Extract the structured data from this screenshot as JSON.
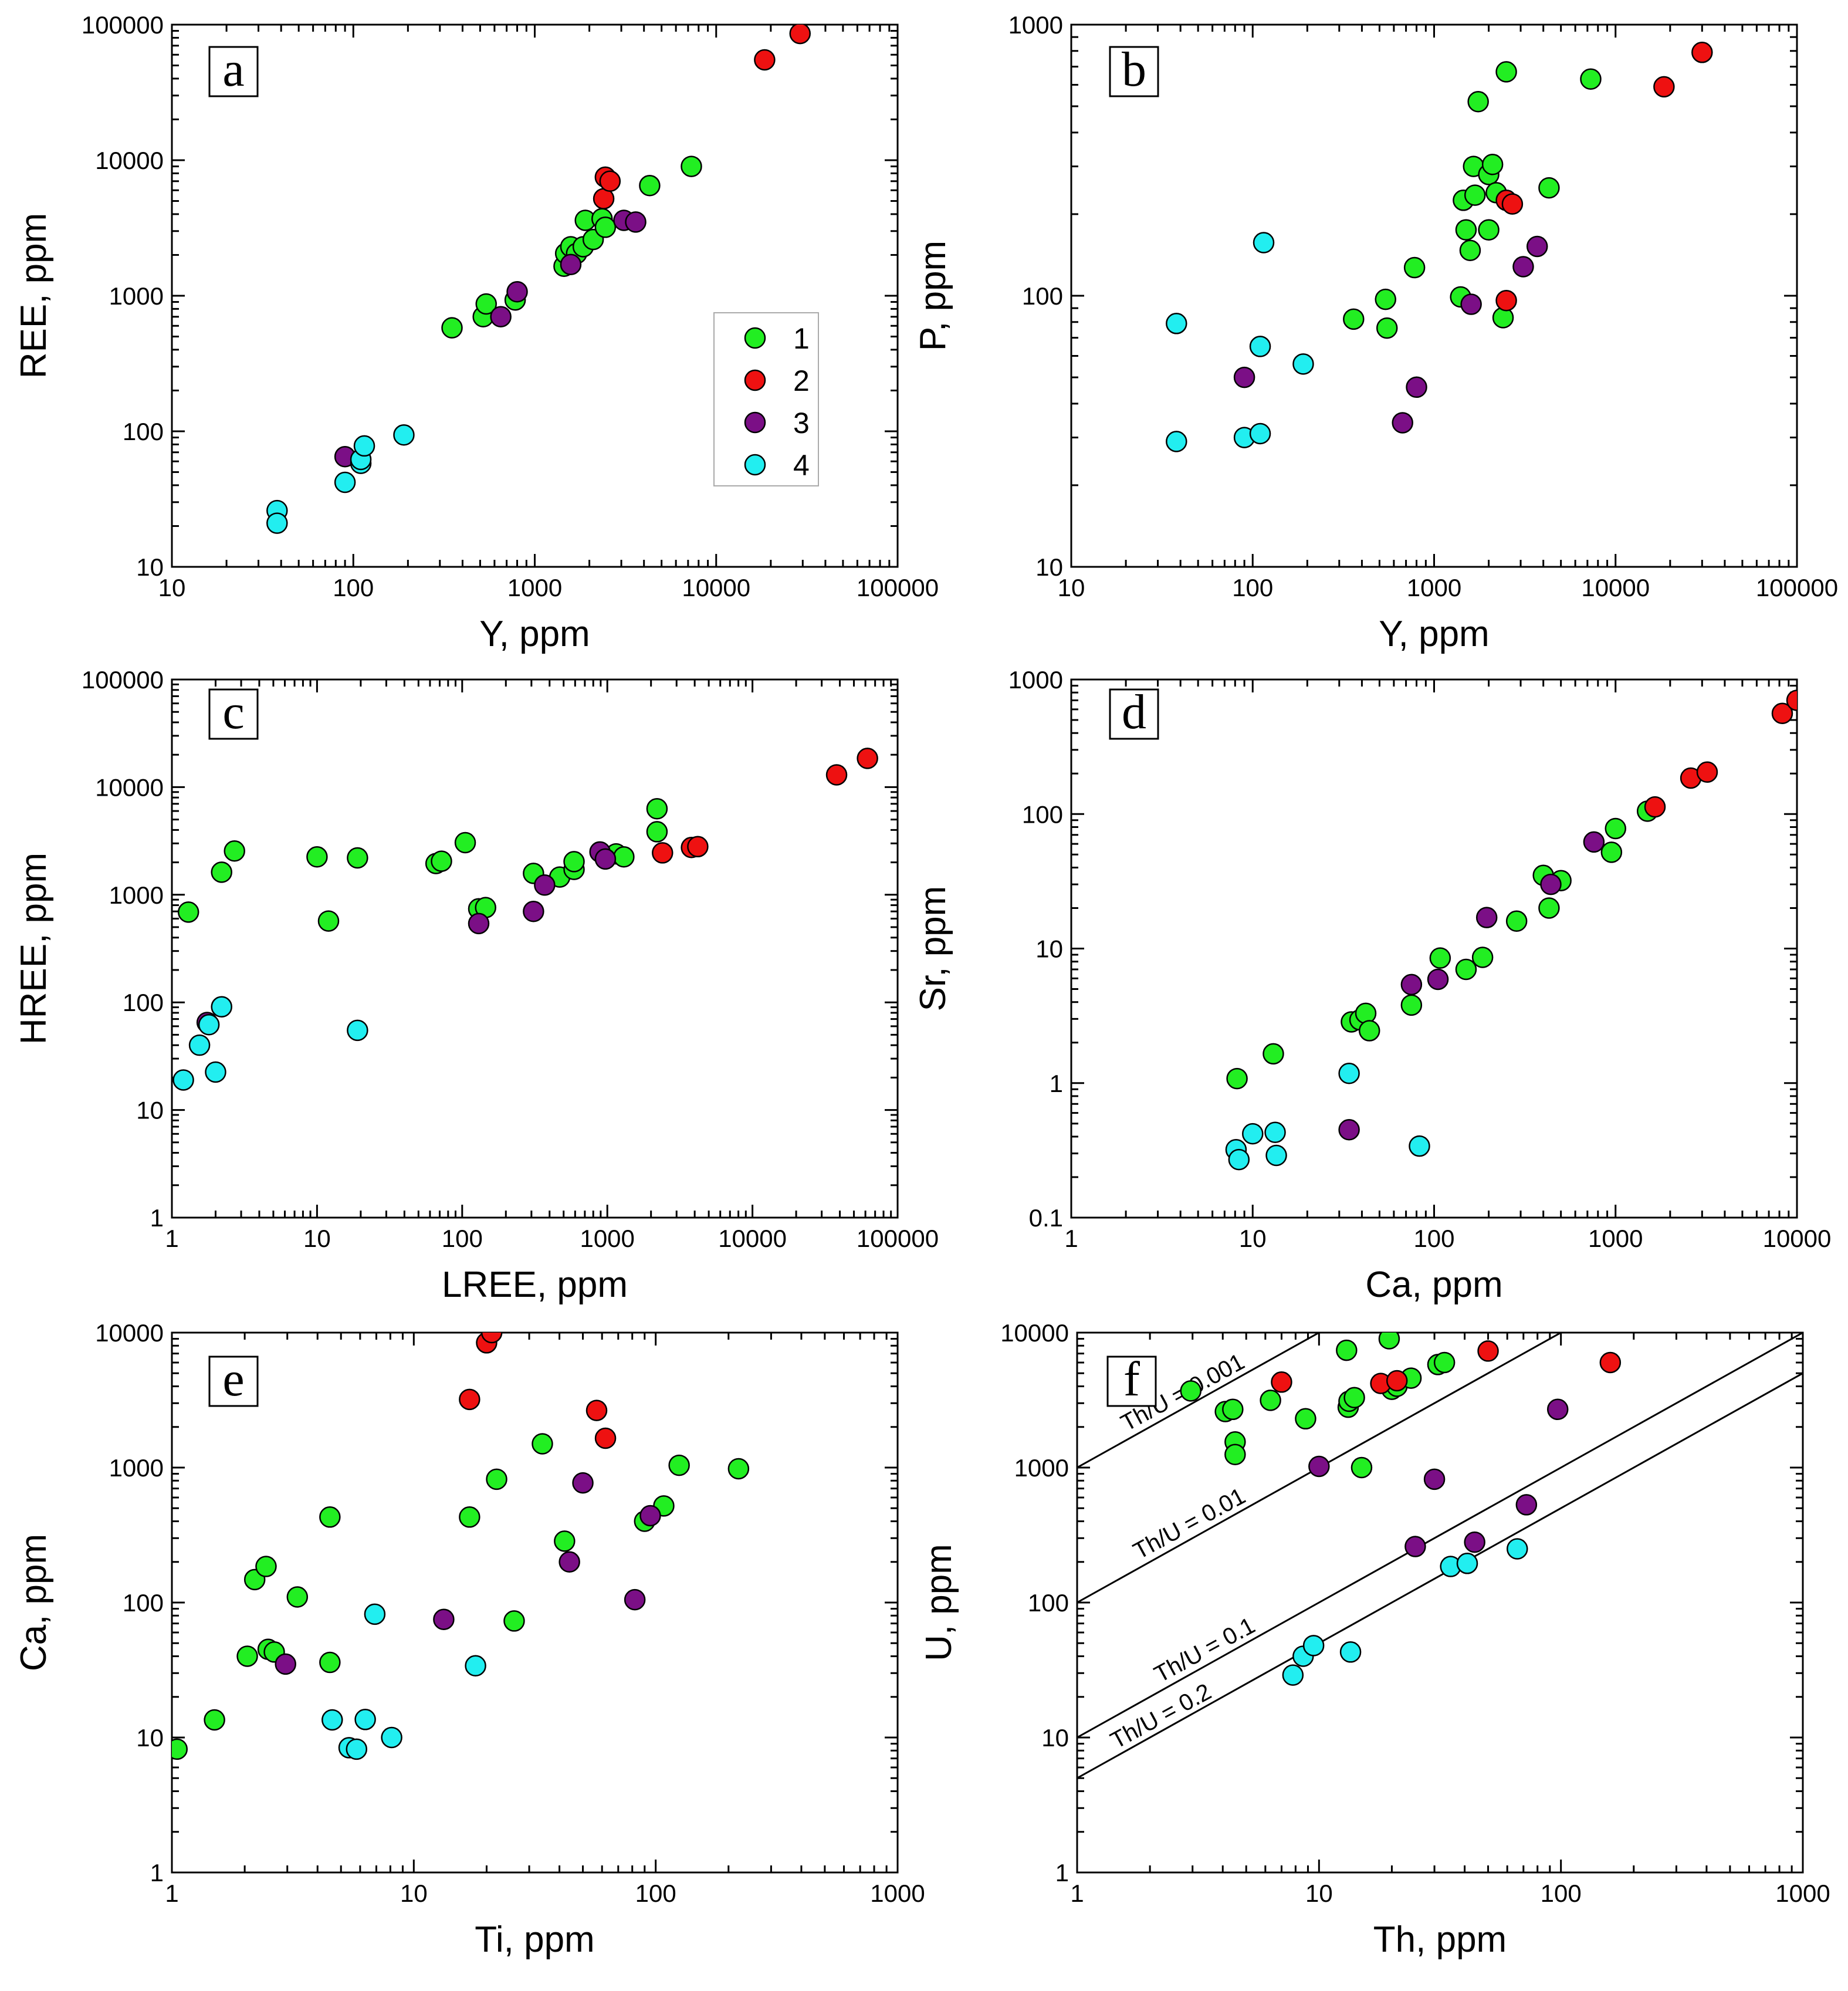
{
  "colors": {
    "group_1": "#22ee22",
    "group_2": "#ee1111",
    "group_3": "#7b0f86",
    "group_4": "#22eef0"
  },
  "legend": {
    "entries": [
      {
        "label": "1",
        "group": 1
      },
      {
        "label": "2",
        "group": 2
      },
      {
        "label": "3",
        "group": 3
      },
      {
        "label": "4",
        "group": 4
      }
    ]
  },
  "chart_data": [
    {
      "id": "a",
      "panel_label": "a",
      "type": "scatter",
      "scale": "log-log",
      "xlabel": "Y, ppm",
      "ylabel": "REE, ppm",
      "xlim": [
        10,
        100000
      ],
      "ylim": [
        10,
        100000
      ],
      "xticks": [
        "10",
        "100",
        "1000",
        "10000",
        "100000"
      ],
      "yticks": [
        "10",
        "100",
        "1000",
        "10000",
        "100000"
      ],
      "legend": true,
      "points": [
        [
          350,
          580,
          1
        ],
        [
          520,
          700,
          1
        ],
        [
          540,
          870,
          1
        ],
        [
          780,
          930,
          1
        ],
        [
          1450,
          1650,
          1
        ],
        [
          1480,
          2050,
          1
        ],
        [
          1580,
          2300,
          1
        ],
        [
          1700,
          2050,
          1
        ],
        [
          1850,
          2300,
          1
        ],
        [
          1900,
          3600,
          1
        ],
        [
          2100,
          2600,
          1
        ],
        [
          2350,
          3700,
          1
        ],
        [
          2450,
          3200,
          1
        ],
        [
          4300,
          6500,
          1
        ],
        [
          7300,
          9000,
          1
        ],
        [
          2400,
          5200,
          2
        ],
        [
          2450,
          7500,
          2
        ],
        [
          2600,
          7000,
          2
        ],
        [
          18500,
          55000,
          2
        ],
        [
          29000,
          86000,
          2
        ],
        [
          90,
          65,
          3
        ],
        [
          650,
          700,
          3
        ],
        [
          800,
          1070,
          3
        ],
        [
          1580,
          1700,
          3
        ],
        [
          3100,
          3600,
          3
        ],
        [
          3600,
          3500,
          3
        ],
        [
          38,
          26,
          4
        ],
        [
          38,
          21,
          4
        ],
        [
          90,
          42,
          4
        ],
        [
          110,
          58,
          4
        ],
        [
          110,
          62,
          4
        ],
        [
          115,
          78,
          4
        ],
        [
          190,
          94,
          4
        ]
      ]
    },
    {
      "id": "b",
      "panel_label": "b",
      "type": "scatter",
      "scale": "log-log",
      "xlabel": "Y, ppm",
      "ylabel": "P, ppm",
      "xlim": [
        10,
        100000
      ],
      "ylim": [
        10,
        1000
      ],
      "xticks": [
        "10",
        "100",
        "1000",
        "10000",
        "100000"
      ],
      "yticks": [
        "10",
        "100",
        "1000"
      ],
      "points": [
        [
          360,
          82,
          1
        ],
        [
          540,
          97,
          1
        ],
        [
          550,
          76,
          1
        ],
        [
          780,
          127,
          1
        ],
        [
          1400,
          99,
          1
        ],
        [
          1450,
          225,
          1
        ],
        [
          1500,
          175,
          1
        ],
        [
          1580,
          147,
          1
        ],
        [
          1650,
          300,
          1
        ],
        [
          1680,
          235,
          1
        ],
        [
          1750,
          520,
          1
        ],
        [
          2000,
          280,
          1
        ],
        [
          2000,
          175,
          1
        ],
        [
          2100,
          305,
          1
        ],
        [
          2200,
          240,
          1
        ],
        [
          2400,
          83,
          1
        ],
        [
          2500,
          670,
          1
        ],
        [
          4300,
          250,
          1
        ],
        [
          7300,
          630,
          1
        ],
        [
          2500,
          96,
          2
        ],
        [
          2500,
          225,
          2
        ],
        [
          2700,
          218,
          2
        ],
        [
          18500,
          590,
          2
        ],
        [
          30000,
          790,
          2
        ],
        [
          90,
          50,
          3
        ],
        [
          670,
          34,
          3
        ],
        [
          800,
          46,
          3
        ],
        [
          1600,
          93,
          3
        ],
        [
          3100,
          128,
          3
        ],
        [
          3700,
          152,
          3
        ],
        [
          38,
          79,
          4
        ],
        [
          38,
          29,
          4
        ],
        [
          90,
          30,
          4
        ],
        [
          110,
          31,
          4
        ],
        [
          110,
          65,
          4
        ],
        [
          115,
          157,
          4
        ],
        [
          190,
          56,
          4
        ]
      ]
    },
    {
      "id": "c",
      "panel_label": "c",
      "type": "scatter",
      "scale": "log-log",
      "xlabel": "LREE, ppm",
      "ylabel": "HREE, ppm",
      "xlim": [
        1,
        100000
      ],
      "ylim": [
        1,
        100000
      ],
      "xticks": [
        "1",
        "10",
        "100",
        "1000",
        "10000",
        "100000"
      ],
      "yticks": [
        "1",
        "10",
        "100",
        "1000",
        "10000",
        "100000"
      ],
      "points": [
        [
          1.3,
          690,
          1
        ],
        [
          2.2,
          1620,
          1
        ],
        [
          2.7,
          2550,
          1
        ],
        [
          10,
          2250,
          1
        ],
        [
          12,
          570,
          1
        ],
        [
          19,
          2200,
          1
        ],
        [
          66,
          1950,
          1
        ],
        [
          72,
          2050,
          1
        ],
        [
          105,
          3050,
          1
        ],
        [
          130,
          740,
          1
        ],
        [
          145,
          760,
          1
        ],
        [
          310,
          1580,
          1
        ],
        [
          470,
          1460,
          1
        ],
        [
          590,
          1720,
          1
        ],
        [
          590,
          2030,
          1
        ],
        [
          1150,
          2400,
          1
        ],
        [
          1300,
          2250,
          1
        ],
        [
          2200,
          3850,
          1
        ],
        [
          2200,
          6300,
          1
        ],
        [
          2400,
          2450,
          2
        ],
        [
          3800,
          2750,
          2
        ],
        [
          4200,
          2800,
          2
        ],
        [
          38000,
          13000,
          2
        ],
        [
          62000,
          18500,
          2
        ],
        [
          1.75,
          65,
          3
        ],
        [
          130,
          540,
          3
        ],
        [
          310,
          700,
          3
        ],
        [
          370,
          1230,
          3
        ],
        [
          890,
          2500,
          3
        ],
        [
          970,
          2150,
          3
        ],
        [
          1.2,
          19,
          4
        ],
        [
          1.55,
          40,
          4
        ],
        [
          1.8,
          62,
          4
        ],
        [
          2.0,
          22.5,
          4
        ],
        [
          2.2,
          91,
          4
        ],
        [
          19,
          55,
          4
        ]
      ]
    },
    {
      "id": "d",
      "panel_label": "d",
      "type": "scatter",
      "scale": "log-log",
      "xlabel": "Ca, ppm",
      "ylabel": "Sr, ppm",
      "xlim": [
        1,
        10000
      ],
      "ylim": [
        0.1,
        1000
      ],
      "xticks": [
        "1",
        "10",
        "100",
        "1000",
        "10000"
      ],
      "yticks": [
        "0.1",
        "1",
        "10",
        "100",
        "1000"
      ],
      "points": [
        [
          8.2,
          1.08,
          1
        ],
        [
          13,
          1.65,
          1
        ],
        [
          35,
          2.85,
          1
        ],
        [
          39,
          2.95,
          1
        ],
        [
          42,
          3.3,
          1
        ],
        [
          44,
          2.45,
          1
        ],
        [
          75,
          3.8,
          1
        ],
        [
          108,
          8.5,
          1
        ],
        [
          150,
          7.0,
          1
        ],
        [
          185,
          8.6,
          1
        ],
        [
          285,
          16,
          1
        ],
        [
          400,
          35,
          1
        ],
        [
          430,
          20,
          1
        ],
        [
          500,
          32,
          1
        ],
        [
          950,
          52,
          1
        ],
        [
          1000,
          78,
          1
        ],
        [
          1500,
          105,
          1
        ],
        [
          1650,
          113,
          2
        ],
        [
          2600,
          185,
          2
        ],
        [
          3200,
          205,
          2
        ],
        [
          8300,
          560,
          2
        ],
        [
          10000,
          700,
          2
        ],
        [
          34,
          0.45,
          3
        ],
        [
          75,
          5.4,
          3
        ],
        [
          105,
          5.9,
          3
        ],
        [
          195,
          17,
          3
        ],
        [
          440,
          30,
          3
        ],
        [
          760,
          62,
          3
        ],
        [
          8.1,
          0.32,
          4
        ],
        [
          8.4,
          0.27,
          4
        ],
        [
          10,
          0.42,
          4
        ],
        [
          13.3,
          0.43,
          4
        ],
        [
          13.5,
          0.29,
          4
        ],
        [
          34,
          1.18,
          4
        ],
        [
          83,
          0.34,
          4
        ]
      ]
    },
    {
      "id": "e",
      "panel_label": "e",
      "type": "scatter",
      "scale": "log-log",
      "xlabel": "Ti, ppm",
      "ylabel": "Ca, ppm",
      "xlim": [
        1,
        1000
      ],
      "ylim": [
        1,
        10000
      ],
      "xticks": [
        "1",
        "10",
        "100",
        "1000"
      ],
      "yticks": [
        "1",
        "10",
        "100",
        "1000",
        "10000"
      ],
      "points": [
        [
          1.05,
          8.2,
          1
        ],
        [
          1.5,
          13.5,
          1
        ],
        [
          2.05,
          40,
          1
        ],
        [
          2.2,
          148,
          1
        ],
        [
          2.45,
          185,
          1
        ],
        [
          2.5,
          45,
          1
        ],
        [
          2.65,
          43,
          1
        ],
        [
          3.3,
          110,
          1
        ],
        [
          4.5,
          430,
          1
        ],
        [
          4.5,
          36,
          1
        ],
        [
          17,
          430,
          1
        ],
        [
          22,
          820,
          1
        ],
        [
          26,
          73,
          1
        ],
        [
          34,
          1500,
          1
        ],
        [
          42,
          285,
          1
        ],
        [
          90,
          400,
          1
        ],
        [
          108,
          520,
          1
        ],
        [
          125,
          1040,
          1
        ],
        [
          220,
          980,
          1
        ],
        [
          17,
          3200,
          2
        ],
        [
          20,
          8400,
          2
        ],
        [
          21,
          10000,
          2
        ],
        [
          57,
          2650,
          2
        ],
        [
          62,
          1650,
          2
        ],
        [
          2.95,
          35,
          3
        ],
        [
          13.3,
          75,
          3
        ],
        [
          44,
          200,
          3
        ],
        [
          50,
          770,
          3
        ],
        [
          82,
          105,
          3
        ],
        [
          95,
          440,
          3
        ],
        [
          4.6,
          13.5,
          4
        ],
        [
          5.4,
          8.4,
          4
        ],
        [
          5.8,
          8.2,
          4
        ],
        [
          6.3,
          13.6,
          4
        ],
        [
          6.9,
          82,
          4
        ],
        [
          8.1,
          10,
          4
        ],
        [
          18,
          34,
          4
        ]
      ]
    },
    {
      "id": "f",
      "panel_label": "f",
      "type": "scatter",
      "scale": "log-log",
      "xlabel": "Th, ppm",
      "ylabel": "U, ppm",
      "xlim": [
        1,
        1000
      ],
      "ylim": [
        1,
        10000
      ],
      "xticks": [
        "1",
        "10",
        "100",
        "1000"
      ],
      "yticks": [
        "1",
        "10",
        "100",
        "1000",
        "10000"
      ],
      "reference_lines": [
        {
          "label": "Th/U = 0.001",
          "ratio": 0.001
        },
        {
          "label": "Th/U = 0.01",
          "ratio": 0.01
        },
        {
          "label": "Th/U = 0.1",
          "ratio": 0.1
        },
        {
          "label": "Th/U = 0.2",
          "ratio": 0.2
        }
      ],
      "points": [
        [
          2.95,
          3700,
          1
        ],
        [
          4.1,
          2600,
          1
        ],
        [
          4.4,
          2700,
          1
        ],
        [
          4.5,
          1550,
          1
        ],
        [
          4.5,
          1250,
          1
        ],
        [
          6.3,
          3150,
          1
        ],
        [
          8.8,
          2300,
          1
        ],
        [
          13,
          7400,
          1
        ],
        [
          13.2,
          2800,
          1
        ],
        [
          13.3,
          3100,
          1
        ],
        [
          14,
          3300,
          1
        ],
        [
          15,
          1000,
          1
        ],
        [
          19.5,
          9000,
          1
        ],
        [
          20,
          3800,
          1
        ],
        [
          21,
          4000,
          1
        ],
        [
          24,
          4600,
          1
        ],
        [
          31,
          5800,
          1
        ],
        [
          33,
          6000,
          1
        ],
        [
          7,
          4300,
          2
        ],
        [
          18,
          4200,
          2
        ],
        [
          21,
          4400,
          2
        ],
        [
          50,
          7300,
          2
        ],
        [
          160,
          6000,
          2
        ],
        [
          10,
          1020,
          3
        ],
        [
          25,
          260,
          3
        ],
        [
          30,
          820,
          3
        ],
        [
          44,
          280,
          3
        ],
        [
          72,
          530,
          3
        ],
        [
          97,
          2700,
          3
        ],
        [
          7.8,
          29,
          4
        ],
        [
          8.6,
          40,
          4
        ],
        [
          9.5,
          48,
          4
        ],
        [
          13.5,
          43,
          4
        ],
        [
          35,
          185,
          4
        ],
        [
          41,
          195,
          4
        ],
        [
          66,
          250,
          4
        ]
      ]
    }
  ]
}
